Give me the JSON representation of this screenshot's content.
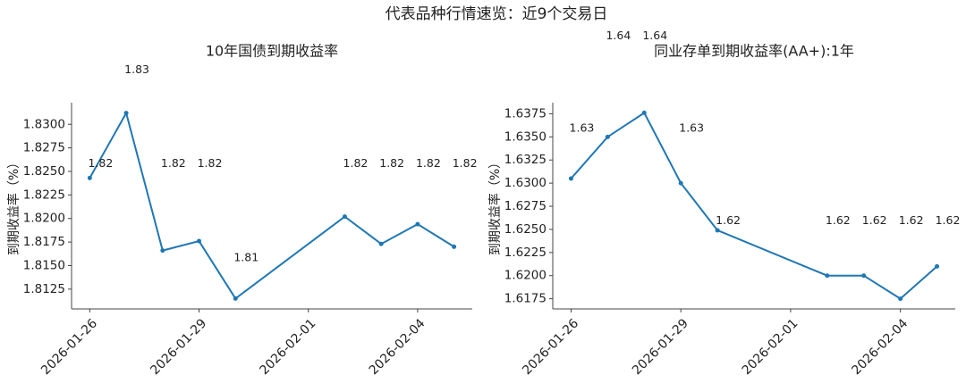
{
  "title": "代表品种行情速览：近9个交易日",
  "chart_data": [
    {
      "type": "line",
      "title": "10年国债到期收益率",
      "ylabel": "到期收益率（%）",
      "x": [
        "2026-01-26",
        "2026-01-27",
        "2026-01-28",
        "2026-01-29",
        "2026-01-30",
        "2026-02-02",
        "2026-02-03",
        "2026-02-04",
        "2026-02-05"
      ],
      "series": [
        {
          "name": "10年国债到期收益率",
          "color": "#1f77b4",
          "values": [
            1.8243,
            1.8312,
            1.8166,
            1.8176,
            1.8115,
            1.8202,
            1.8173,
            1.8194,
            1.817
          ],
          "value_labels": [
            "1.82",
            "1.83",
            "1.82",
            "1.82",
            "1.81",
            "1.82",
            "1.82",
            "1.82",
            "1.82"
          ]
        }
      ],
      "xlim": [
        "2026-01-25T12:00",
        "2026-02-05T12:00"
      ],
      "xticks": [
        "2026-01-26",
        "2026-01-29",
        "2026-02-01",
        "2026-02-04"
      ],
      "ylim": [
        1.8104,
        1.8323
      ],
      "yticks": [
        {
          "value": 1.8125,
          "label": "1.8125"
        },
        {
          "value": 1.815,
          "label": "1.8150"
        },
        {
          "value": 1.8175,
          "label": "1.8175"
        },
        {
          "value": 1.82,
          "label": "1.8200"
        },
        {
          "value": 1.8225,
          "label": "1.8225"
        },
        {
          "value": 1.825,
          "label": "1.8250"
        },
        {
          "value": 1.8275,
          "label": "1.8275"
        },
        {
          "value": 1.83,
          "label": "1.8300"
        }
      ]
    },
    {
      "type": "line",
      "title": "同业存单到期收益率(AA+):1年",
      "ylabel": "到期收益率（%）",
      "x": [
        "2026-01-26",
        "2026-01-27",
        "2026-01-28",
        "2026-01-29",
        "2026-01-30",
        "2026-02-02",
        "2026-02-03",
        "2026-02-04",
        "2026-02-05"
      ],
      "series": [
        {
          "name": "同业存单到期收益率(AA+):1年",
          "color": "#1f77b4",
          "values": [
            1.6305,
            1.635,
            1.6376,
            1.63,
            1.6249,
            1.62,
            1.62,
            1.6175,
            1.621
          ],
          "value_labels": [
            "1.63",
            "1.64",
            "1.64",
            "1.63",
            "1.62",
            "1.62",
            "1.62",
            "1.62",
            "1.62"
          ]
        }
      ],
      "xlim": [
        "2026-01-25T12:00",
        "2026-02-05T12:00"
      ],
      "xticks": [
        "2026-01-26",
        "2026-01-29",
        "2026-02-01",
        "2026-02-04"
      ],
      "ylim": [
        1.6164,
        1.6387
      ],
      "yticks": [
        {
          "value": 1.6175,
          "label": "1.6175"
        },
        {
          "value": 1.62,
          "label": "1.6200"
        },
        {
          "value": 1.6225,
          "label": "1.6225"
        },
        {
          "value": 1.625,
          "label": "1.6250"
        },
        {
          "value": 1.6275,
          "label": "1.6275"
        },
        {
          "value": 1.63,
          "label": "1.6300"
        },
        {
          "value": 1.6325,
          "label": "1.6325"
        },
        {
          "value": 1.635,
          "label": "1.6350"
        },
        {
          "value": 1.6375,
          "label": "1.6375"
        }
      ]
    }
  ]
}
